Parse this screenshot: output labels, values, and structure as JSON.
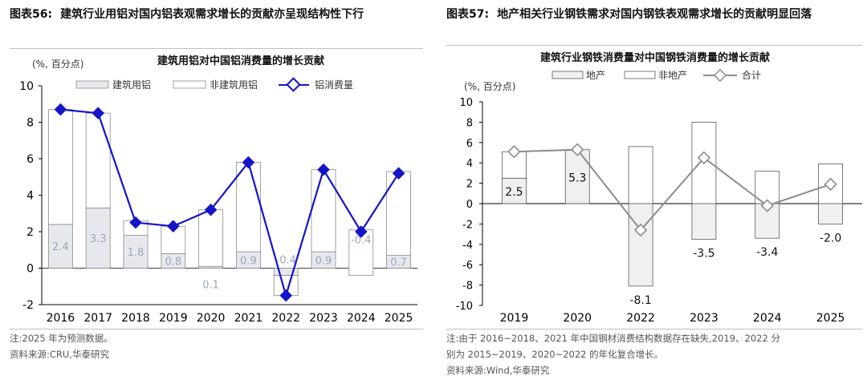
{
  "figures": [
    {
      "number": "图表56:",
      "title": "建筑行业用铝对国内铝表观需求增长的贡献亦呈现结构性下行",
      "note": "注:2025 年为预测数据。",
      "source": "资料来源:CRU,华泰研究"
    },
    {
      "number": "图表57:",
      "title": "地产相关行业钢铁需求对国内钢铁表观需求增长的贡献明显回落",
      "note_line1": "注:由于 2016~2018、2021 年中国钢材消费结构数据存在缺失,2019、2022 分",
      "note_line2": "别为 2015~2019、2020~2022 的年化复合增长。",
      "source": "资料来源:Wind,华泰研究"
    }
  ],
  "chart_data": [
    {
      "type": "bar",
      "title": "建筑用铝对中国铝消费量的增长贡献",
      "unit_label": "(%, 百分点)",
      "categories": [
        "2016",
        "2017",
        "2018",
        "2019",
        "2020",
        "2021",
        "2022",
        "2023",
        "2024",
        "2025"
      ],
      "ylim": [
        -2,
        10
      ],
      "yticks": [
        "-2",
        "0",
        "2",
        "4",
        "6",
        "8",
        "10"
      ],
      "legend": [
        "建筑用铝",
        "非建筑用铝",
        "铝消费量"
      ],
      "series": [
        {
          "name": "建筑用铝",
          "values": [
            2.4,
            3.3,
            1.8,
            0.8,
            0.1,
            0.9,
            -0.4,
            0.9,
            -0.4,
            0.7
          ]
        },
        {
          "name": "非建筑用铝",
          "values": [
            6.3,
            5.2,
            0.8,
            1.5,
            3.1,
            4.9,
            -1.1,
            4.5,
            2.5,
            4.6
          ]
        },
        {
          "name": "铝消费量",
          "type": "line",
          "values": [
            8.7,
            8.5,
            2.5,
            2.3,
            3.2,
            5.8,
            -1.5,
            5.4,
            2.0,
            5.2
          ]
        }
      ],
      "data_labels": [
        "2.4",
        "3.3",
        "1.8",
        "0.8",
        "0.1",
        "0.9",
        "-0.4",
        "0.9",
        "-0.4",
        "0.7"
      ],
      "colors": {
        "building": "#e6e8ed",
        "building_label": "#9aa6b8",
        "other": "#ffffff",
        "bar_edge": "#8c8c8c",
        "line": "#1414c8"
      }
    },
    {
      "type": "bar",
      "title": "建筑行业钢铁消费量对中国钢铁消费量的增长贡献",
      "unit_label": "(%, 百分点)",
      "categories": [
        "2019",
        "2020",
        "2022",
        "2023",
        "2024",
        "2025"
      ],
      "ylim": [
        -10,
        10
      ],
      "yticks": [
        "-10",
        "-8",
        "-6",
        "-4",
        "-2",
        "0",
        "2",
        "4",
        "6",
        "8",
        "10"
      ],
      "legend": [
        "地产",
        "非地产",
        "合计"
      ],
      "series": [
        {
          "name": "地产",
          "values": [
            2.5,
            5.3,
            -8.1,
            -3.5,
            -3.4,
            -2.0
          ]
        },
        {
          "name": "非地产",
          "values": [
            2.6,
            0,
            5.6,
            8.0,
            3.2,
            3.9
          ]
        },
        {
          "name": "合计",
          "type": "line",
          "values": [
            5.1,
            5.3,
            -2.6,
            4.5,
            -0.2,
            1.9
          ]
        }
      ],
      "data_labels": [
        "2.5",
        "5.3",
        "-8.1",
        "-3.5",
        "-3.4",
        "-2.0"
      ],
      "colors": {
        "property": "#f0f0f0",
        "other": "#ffffff",
        "bar_edge": "#595959",
        "line": "#8c8c8c"
      }
    }
  ]
}
